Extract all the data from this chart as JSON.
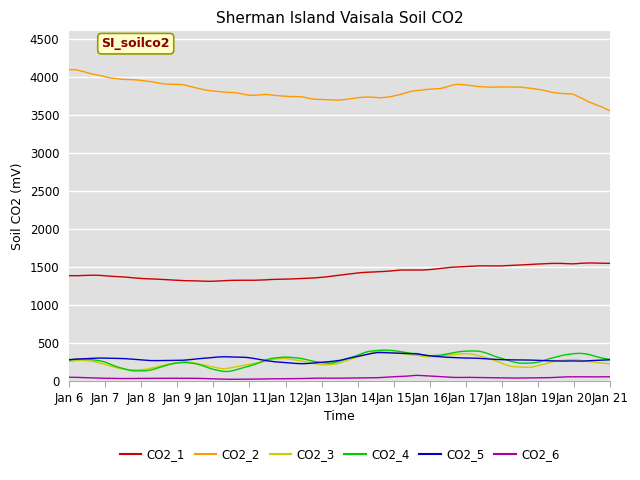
{
  "title": "Sherman Island Vaisala Soil CO2",
  "ylabel": "Soil CO2 (mV)",
  "xlabel": "Time",
  "annotation_text": "SI_soilco2",
  "ylim": [
    0,
    4600
  ],
  "yticks": [
    0,
    500,
    1000,
    1500,
    2000,
    2500,
    3000,
    3500,
    4000,
    4500
  ],
  "xtick_labels": [
    "Jan 6",
    "Jan 7",
    "Jan 8",
    "Jan 9",
    "Jan 10",
    "Jan 11",
    "Jan 12",
    "Jan 13",
    "Jan 14",
    "Jan 15",
    "Jan 16",
    "Jan 17",
    "Jan 18",
    "Jan 19",
    "Jan 20",
    "Jan 21"
  ],
  "legend_labels": [
    "CO2_1",
    "CO2_2",
    "CO2_3",
    "CO2_4",
    "CO2_5",
    "CO2_6"
  ],
  "line_colors": {
    "CO2_1": "#cc0000",
    "CO2_2": "#ff9900",
    "CO2_3": "#cccc00",
    "CO2_4": "#00cc00",
    "CO2_5": "#0000cc",
    "CO2_6": "#aa00aa"
  },
  "background_color": "#e0e0e0",
  "grid_color": "#ffffff",
  "annotation_bg": "#ffffcc",
  "annotation_edge": "#999900",
  "annotation_text_color": "#880000",
  "title_fontsize": 11,
  "axis_fontsize": 9,
  "tick_fontsize": 8.5
}
